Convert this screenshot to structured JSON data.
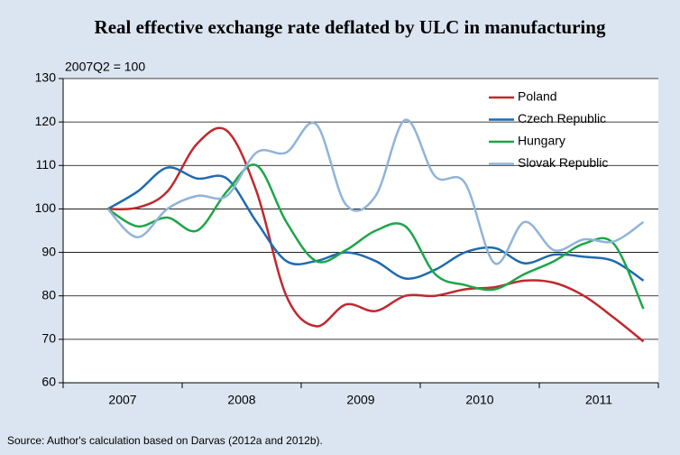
{
  "chart_data": {
    "type": "line",
    "title": "Real effective exchange rate deflated by ULC in manufacturing",
    "subtitle": "2007Q2 = 100",
    "source": "Source: Author's calculation based on Darvas (2012a and 2012b).",
    "x": [
      2007.375,
      2007.625,
      2007.875,
      2008.125,
      2008.375,
      2008.625,
      2008.875,
      2009.125,
      2009.375,
      2009.625,
      2009.875,
      2010.125,
      2010.375,
      2010.625,
      2010.875,
      2011.125,
      2011.375,
      2011.625,
      2011.875
    ],
    "xlim": [
      2007,
      2012
    ],
    "xticks": [
      2007,
      2008,
      2009,
      2010,
      2011,
      2012
    ],
    "ylim": [
      60,
      130
    ],
    "yticks": [
      60,
      70,
      80,
      90,
      100,
      110,
      120,
      130
    ],
    "grid": true,
    "legend": "upper right",
    "series": [
      {
        "name": "Poland",
        "color": "#c0282d",
        "values": [
          100,
          100.3,
          104,
          115,
          118,
          104,
          80,
          73,
          78,
          76.5,
          80,
          80,
          81.5,
          82,
          83.5,
          83,
          80,
          75,
          69.5
        ]
      },
      {
        "name": "Czech Republic",
        "color": "#1f6bb0",
        "values": [
          100,
          104,
          109.5,
          107,
          107,
          97,
          88,
          88,
          90,
          88,
          84,
          86,
          90,
          91,
          87.5,
          89.5,
          89,
          88,
          83.5
        ]
      },
      {
        "name": "Hungary",
        "color": "#1ea548",
        "values": [
          100,
          96,
          98,
          95,
          104,
          110,
          97,
          88,
          90.5,
          95,
          96,
          85,
          82.5,
          81.5,
          85,
          88,
          92,
          92,
          77
        ]
      },
      {
        "name": "Slovak Republic",
        "color": "#8fb4d8",
        "values": [
          100,
          93.5,
          100,
          103,
          103,
          113,
          113,
          119.5,
          101,
          103,
          120.5,
          107.5,
          106,
          87.5,
          97,
          90.5,
          93,
          92.5,
          97
        ]
      }
    ]
  }
}
